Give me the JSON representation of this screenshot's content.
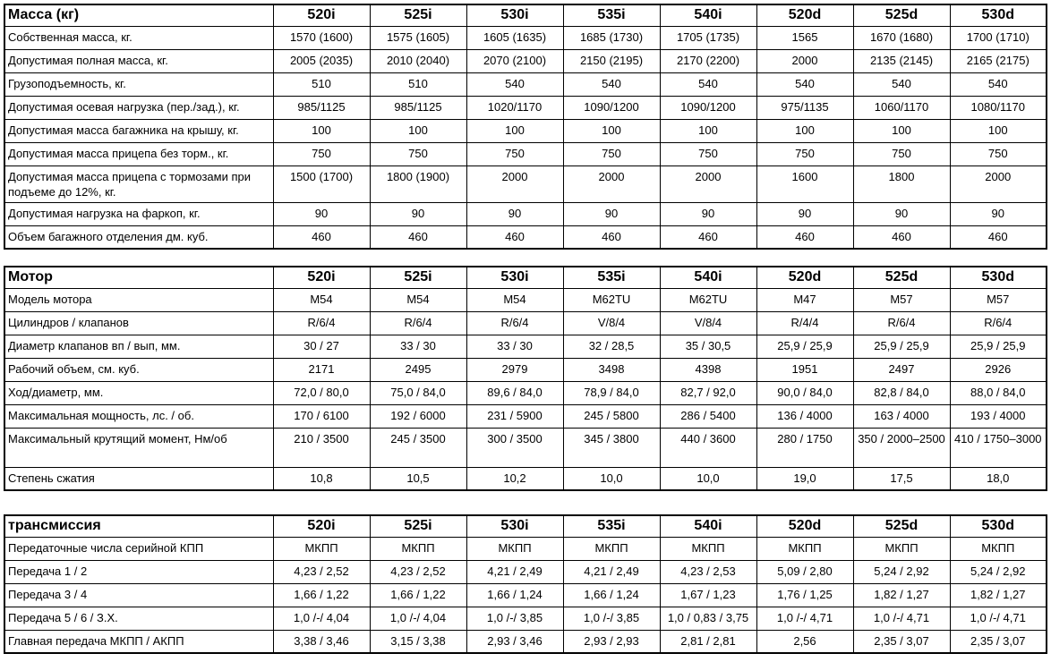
{
  "models": [
    "520i",
    "525i",
    "530i",
    "535i",
    "540i",
    "520d",
    "525d",
    "530d"
  ],
  "mass": {
    "title": "Масса (кг)",
    "rows": [
      {
        "label": "Собственная масса, кг.",
        "values": [
          "1570 (1600)",
          "1575 (1605)",
          "1605 (1635)",
          "1685 (1730)",
          "1705 (1735)",
          "1565",
          "1670 (1680)",
          "1700 (1710)"
        ]
      },
      {
        "label": "Допустимая полная масса, кг.",
        "values": [
          "2005 (2035)",
          "2010 (2040)",
          "2070 (2100)",
          "2150 (2195)",
          "2170 (2200)",
          "2000",
          "2135 (2145)",
          "2165 (2175)"
        ]
      },
      {
        "label": "Грузоподъемность, кг.",
        "values": [
          "510",
          "510",
          "540",
          "540",
          "540",
          "540",
          "540",
          "540"
        ]
      },
      {
        "label": "Допустимая осевая нагрузка (пер./зад.), кг.",
        "values": [
          "985/1125",
          "985/1125",
          "1020/1170",
          "1090/1200",
          "1090/1200",
          "975/1135",
          "1060/1170",
          "1080/1170"
        ]
      },
      {
        "label": "Допустимая масса багажника на крышу, кг.",
        "values": [
          "100",
          "100",
          "100",
          "100",
          "100",
          "100",
          "100",
          "100"
        ]
      },
      {
        "label": "Допустимая масса прицепа без торм., кг.",
        "values": [
          "750",
          "750",
          "750",
          "750",
          "750",
          "750",
          "750",
          "750"
        ]
      },
      {
        "label": "Допустимая масса прицепа с тормозами при подъеме до 12%, кг.",
        "values": [
          "1500 (1700)",
          "1800 (1900)",
          "2000",
          "2000",
          "2000",
          "1600",
          "1800",
          "2000"
        ]
      },
      {
        "label": "Допустимая нагрузка на фаркоп, кг.",
        "values": [
          "90",
          "90",
          "90",
          "90",
          "90",
          "90",
          "90",
          "90"
        ]
      },
      {
        "label": "Объем багажного отделения дм. куб.",
        "values": [
          "460",
          "460",
          "460",
          "460",
          "460",
          "460",
          "460",
          "460"
        ]
      }
    ]
  },
  "engine": {
    "title": "Мотор",
    "rows": [
      {
        "label": "Модель мотора",
        "values": [
          "M54",
          "M54",
          "M54",
          "M62TU",
          "M62TU",
          "M47",
          "M57",
          "M57"
        ]
      },
      {
        "label": "Цилиндров / клапанов",
        "values": [
          "R/6/4",
          "R/6/4",
          "R/6/4",
          "V/8/4",
          "V/8/4",
          "R/4/4",
          "R/6/4",
          "R/6/4"
        ]
      },
      {
        "label": "Диаметр клапанов вп / вып, мм.",
        "values": [
          "30 / 27",
          "33 / 30",
          "33 / 30",
          "32 / 28,5",
          "35 / 30,5",
          "25,9 / 25,9",
          "25,9 / 25,9",
          "25,9 / 25,9"
        ]
      },
      {
        "label": "Рабочий объем, см. куб.",
        "values": [
          "2171",
          "2495",
          "2979",
          "3498",
          "4398",
          "1951",
          "2497",
          "2926"
        ]
      },
      {
        "label": "Ход/диаметр, мм.",
        "values": [
          "72,0 / 80,0",
          "75,0 / 84,0",
          "89,6 / 84,0",
          "78,9 / 84,0",
          "82,7 / 92,0",
          "90,0 / 84,0",
          "82,8 / 84,0",
          "88,0 / 84,0"
        ]
      },
      {
        "label": "Максимальная мощность,  лс. / об.",
        "values": [
          "170 / 6100",
          "192 / 6000",
          "231 / 5900",
          "245 / 5800",
          "286 / 5400",
          "136 / 4000",
          "163 / 4000",
          "193 / 4000"
        ]
      },
      {
        "label": "Максимальный крутящий момент, Нм/об",
        "values": [
          "210 / 3500",
          "245 / 3500",
          "300 / 3500",
          "345 / 3800",
          "440 / 3600",
          "280 / 1750",
          "350  / 2000–2500",
          "410 / 1750–3000"
        ]
      },
      {
        "label": "Степень сжатия",
        "values": [
          "10,8",
          "10,5",
          "10,2",
          "10,0",
          "10,0",
          "19,0",
          "17,5",
          "18,0"
        ]
      }
    ]
  },
  "transmission": {
    "title": "трансмиссия",
    "rows": [
      {
        "label": "Передаточные числа серийной КПП",
        "values": [
          "МКПП",
          "МКПП",
          "МКПП",
          "МКПП",
          "МКПП",
          "МКПП",
          "МКПП",
          "МКПП"
        ]
      },
      {
        "label": "Передача 1 / 2",
        "values": [
          "4,23 / 2,52",
          "4,23 / 2,52",
          "4,21 / 2,49",
          "4,21 / 2,49",
          "4,23 / 2,53",
          "5,09 / 2,80",
          "5,24 / 2,92",
          "5,24 / 2,92"
        ]
      },
      {
        "label": "Передача 3 / 4",
        "values": [
          "1,66 / 1,22",
          "1,66 / 1,22",
          "1,66 / 1,24",
          "1,66 / 1,24",
          "1,67 / 1,23",
          "1,76 / 1,25",
          "1,82 / 1,27",
          "1,82 / 1,27"
        ]
      },
      {
        "label": "Передача 5 / 6 / З.Х.",
        "values": [
          "1,0 /-/ 4,04",
          "1,0 /-/ 4,04",
          "1,0 /-/ 3,85",
          "1,0 /-/ 3,85",
          "1,0 / 0,83 / 3,75",
          "1,0 /-/ 4,71",
          "1,0 /-/ 4,71",
          "1,0 /-/ 4,71"
        ]
      },
      {
        "label": "Главная передача МКПП / АКПП",
        "values": [
          "3,38 / 3,46",
          "3,15 / 3,38",
          "2,93 / 3,46",
          "2,93 / 2,93",
          "2,81 / 2,81",
          "2,56",
          "2,35 / 3,07",
          "2,35 / 3,07"
        ]
      }
    ]
  }
}
